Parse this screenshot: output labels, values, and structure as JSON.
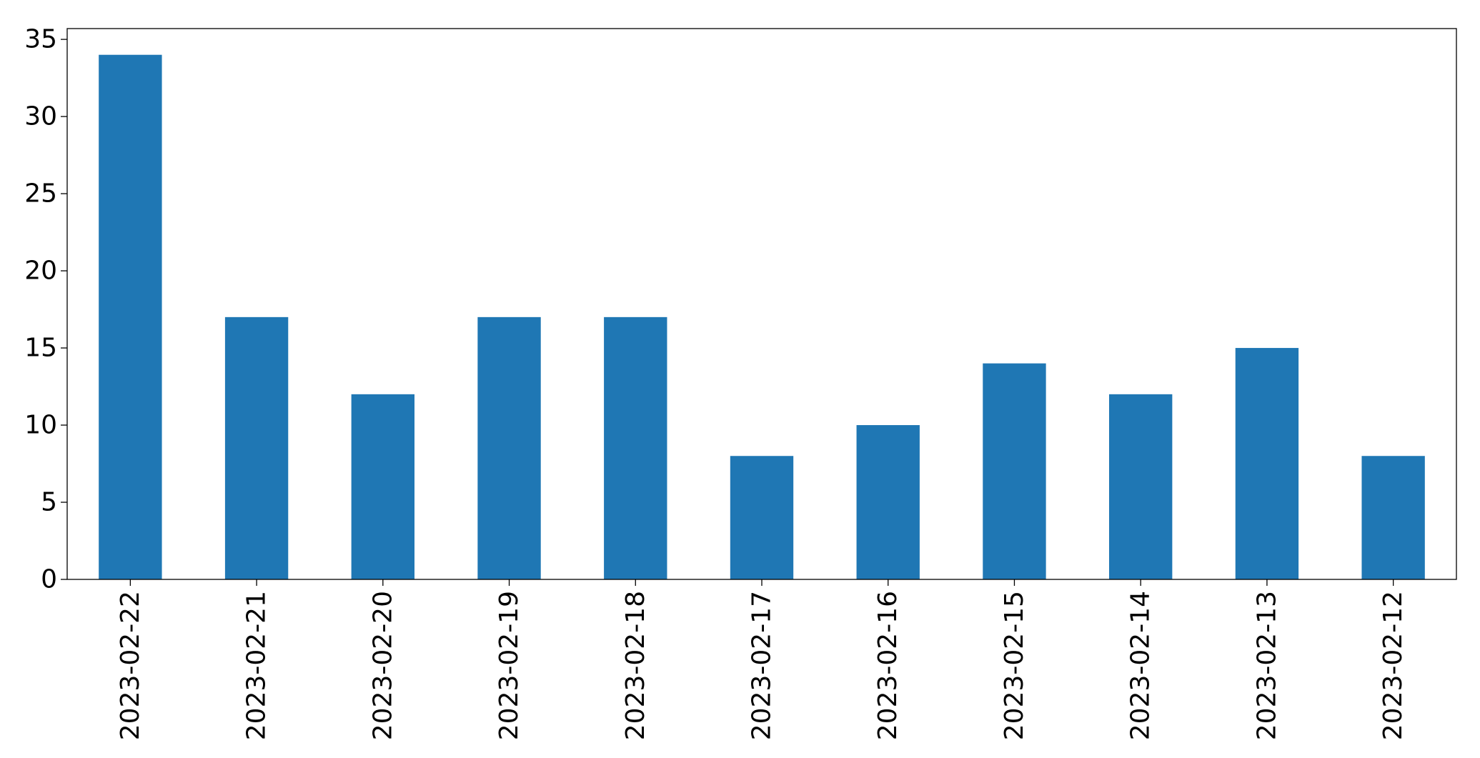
{
  "chart_data": {
    "type": "bar",
    "categories": [
      "2023-02-22",
      "2023-02-21",
      "2023-02-20",
      "2023-02-19",
      "2023-02-18",
      "2023-02-17",
      "2023-02-16",
      "2023-02-15",
      "2023-02-14",
      "2023-02-13",
      "2023-02-12"
    ],
    "values": [
      34,
      17,
      12,
      17,
      17,
      8,
      10,
      14,
      12,
      15,
      8
    ],
    "title": "",
    "xlabel": "",
    "ylabel": "",
    "ylim": [
      0,
      35.7
    ],
    "yticks": [
      0,
      5,
      10,
      15,
      20,
      25,
      30,
      35
    ],
    "bar_color": "#1f77b4",
    "grid": false,
    "legend": "none"
  }
}
